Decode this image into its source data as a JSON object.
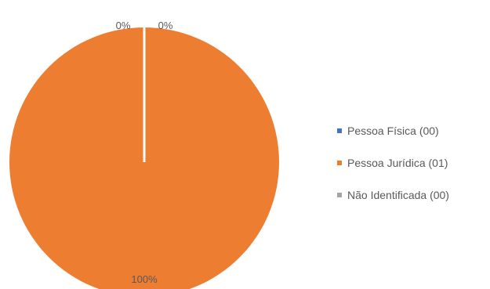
{
  "chart_data": {
    "type": "pie",
    "categories": [
      "Pessoa Física (00)",
      "Pessoa Jurídica (01)",
      "Não Identificada (00)"
    ],
    "values": [
      0,
      1,
      0
    ],
    "data_labels": [
      "0%",
      "100%",
      "0%"
    ],
    "colors": [
      "#4472C4",
      "#ED7D31",
      "#A5A5A5"
    ],
    "legend_position": "right",
    "title": ""
  }
}
